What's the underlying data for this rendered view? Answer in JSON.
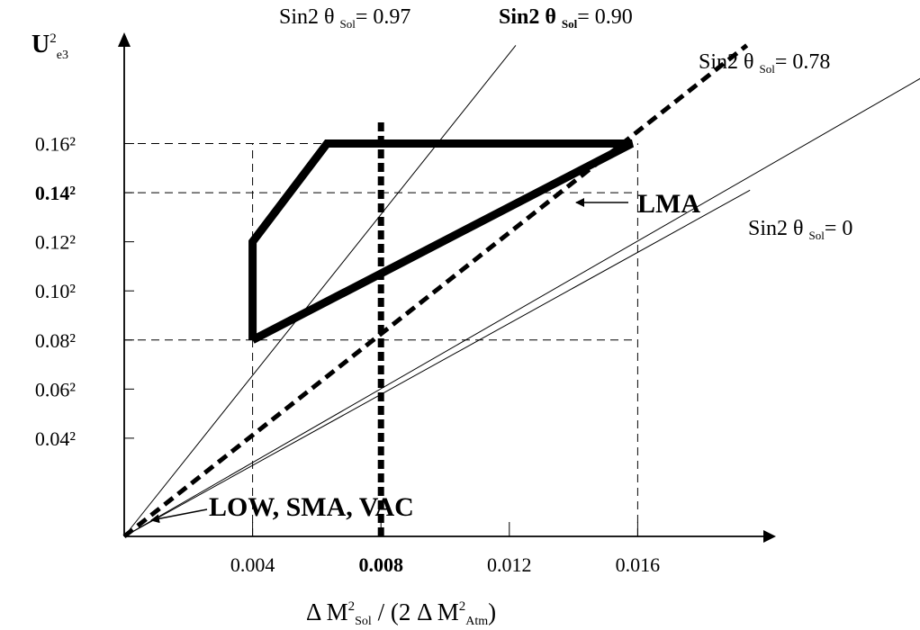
{
  "chart_data": {
    "type": "line",
    "title": "",
    "xlabel": {
      "main": "Δ M",
      "sup1": "2",
      "sub1": "Sol",
      "mid": " / (2 Δ M",
      "sup2": "2",
      "sub2": "Atm",
      "end": ")"
    },
    "ylabel": {
      "main": "U",
      "sup": "2",
      "sub": "e3"
    },
    "x_ticks": [
      {
        "value": 0.004,
        "label": "0.004",
        "bold": false
      },
      {
        "value": 0.008,
        "label": "0.008",
        "bold": true
      },
      {
        "value": 0.012,
        "label": "0.012",
        "bold": false
      },
      {
        "value": 0.016,
        "label": "0.016",
        "bold": false
      }
    ],
    "y_ticks": [
      {
        "value": 0.04,
        "label": "0.04²",
        "bold": false
      },
      {
        "value": 0.06,
        "label": "0.06²",
        "bold": false
      },
      {
        "value": 0.08,
        "label": "0.08²",
        "bold": false
      },
      {
        "value": 0.1,
        "label": "0.10²",
        "bold": false
      },
      {
        "value": 0.12,
        "label": "0.12²",
        "bold": false
      },
      {
        "value": 0.14,
        "label": "0.14²",
        "bold": true
      },
      {
        "value": 0.16,
        "label": "0.16²",
        "bold": false
      }
    ],
    "guide_lines": {
      "vertical": [
        0.004,
        0.016
      ],
      "horizontal": [
        0.08,
        0.14,
        0.16
      ]
    },
    "lines": [
      {
        "label_pre": "Sin2 θ",
        "label_sub": "Sol",
        "label_val": "= 0.97",
        "bold": false,
        "style": "thin",
        "end": [
          0.0122,
          0.2
        ]
      },
      {
        "label_pre": "Sin2 θ",
        "label_sub": "Sol",
        "label_val": "= 0.90",
        "bold": true,
        "style": "dashed",
        "end": [
          0.0194,
          0.2
        ]
      },
      {
        "label_pre": "Sin2 θ",
        "label_sub": "Sol",
        "label_val": "= 0.78",
        "bold": false,
        "style": "thin",
        "end": [
          0.0266,
          0.2
        ]
      },
      {
        "label_pre": "Sin2 θ",
        "label_sub": "Sol",
        "label_val": "= 0",
        "bold": false,
        "style": "thin",
        "end": [
          0.0195,
          0.141
        ]
      }
    ],
    "vertical_dashed_line": {
      "x": 0.008
    },
    "lma_region": {
      "label": "LMA",
      "polygon": [
        [
          0.004,
          0.08
        ],
        [
          0.004,
          0.12
        ],
        [
          0.00632,
          0.16
        ],
        [
          0.01582,
          0.16
        ],
        [
          0.004,
          0.08
        ]
      ]
    },
    "low_label": "LOW, SMA, VAC"
  }
}
